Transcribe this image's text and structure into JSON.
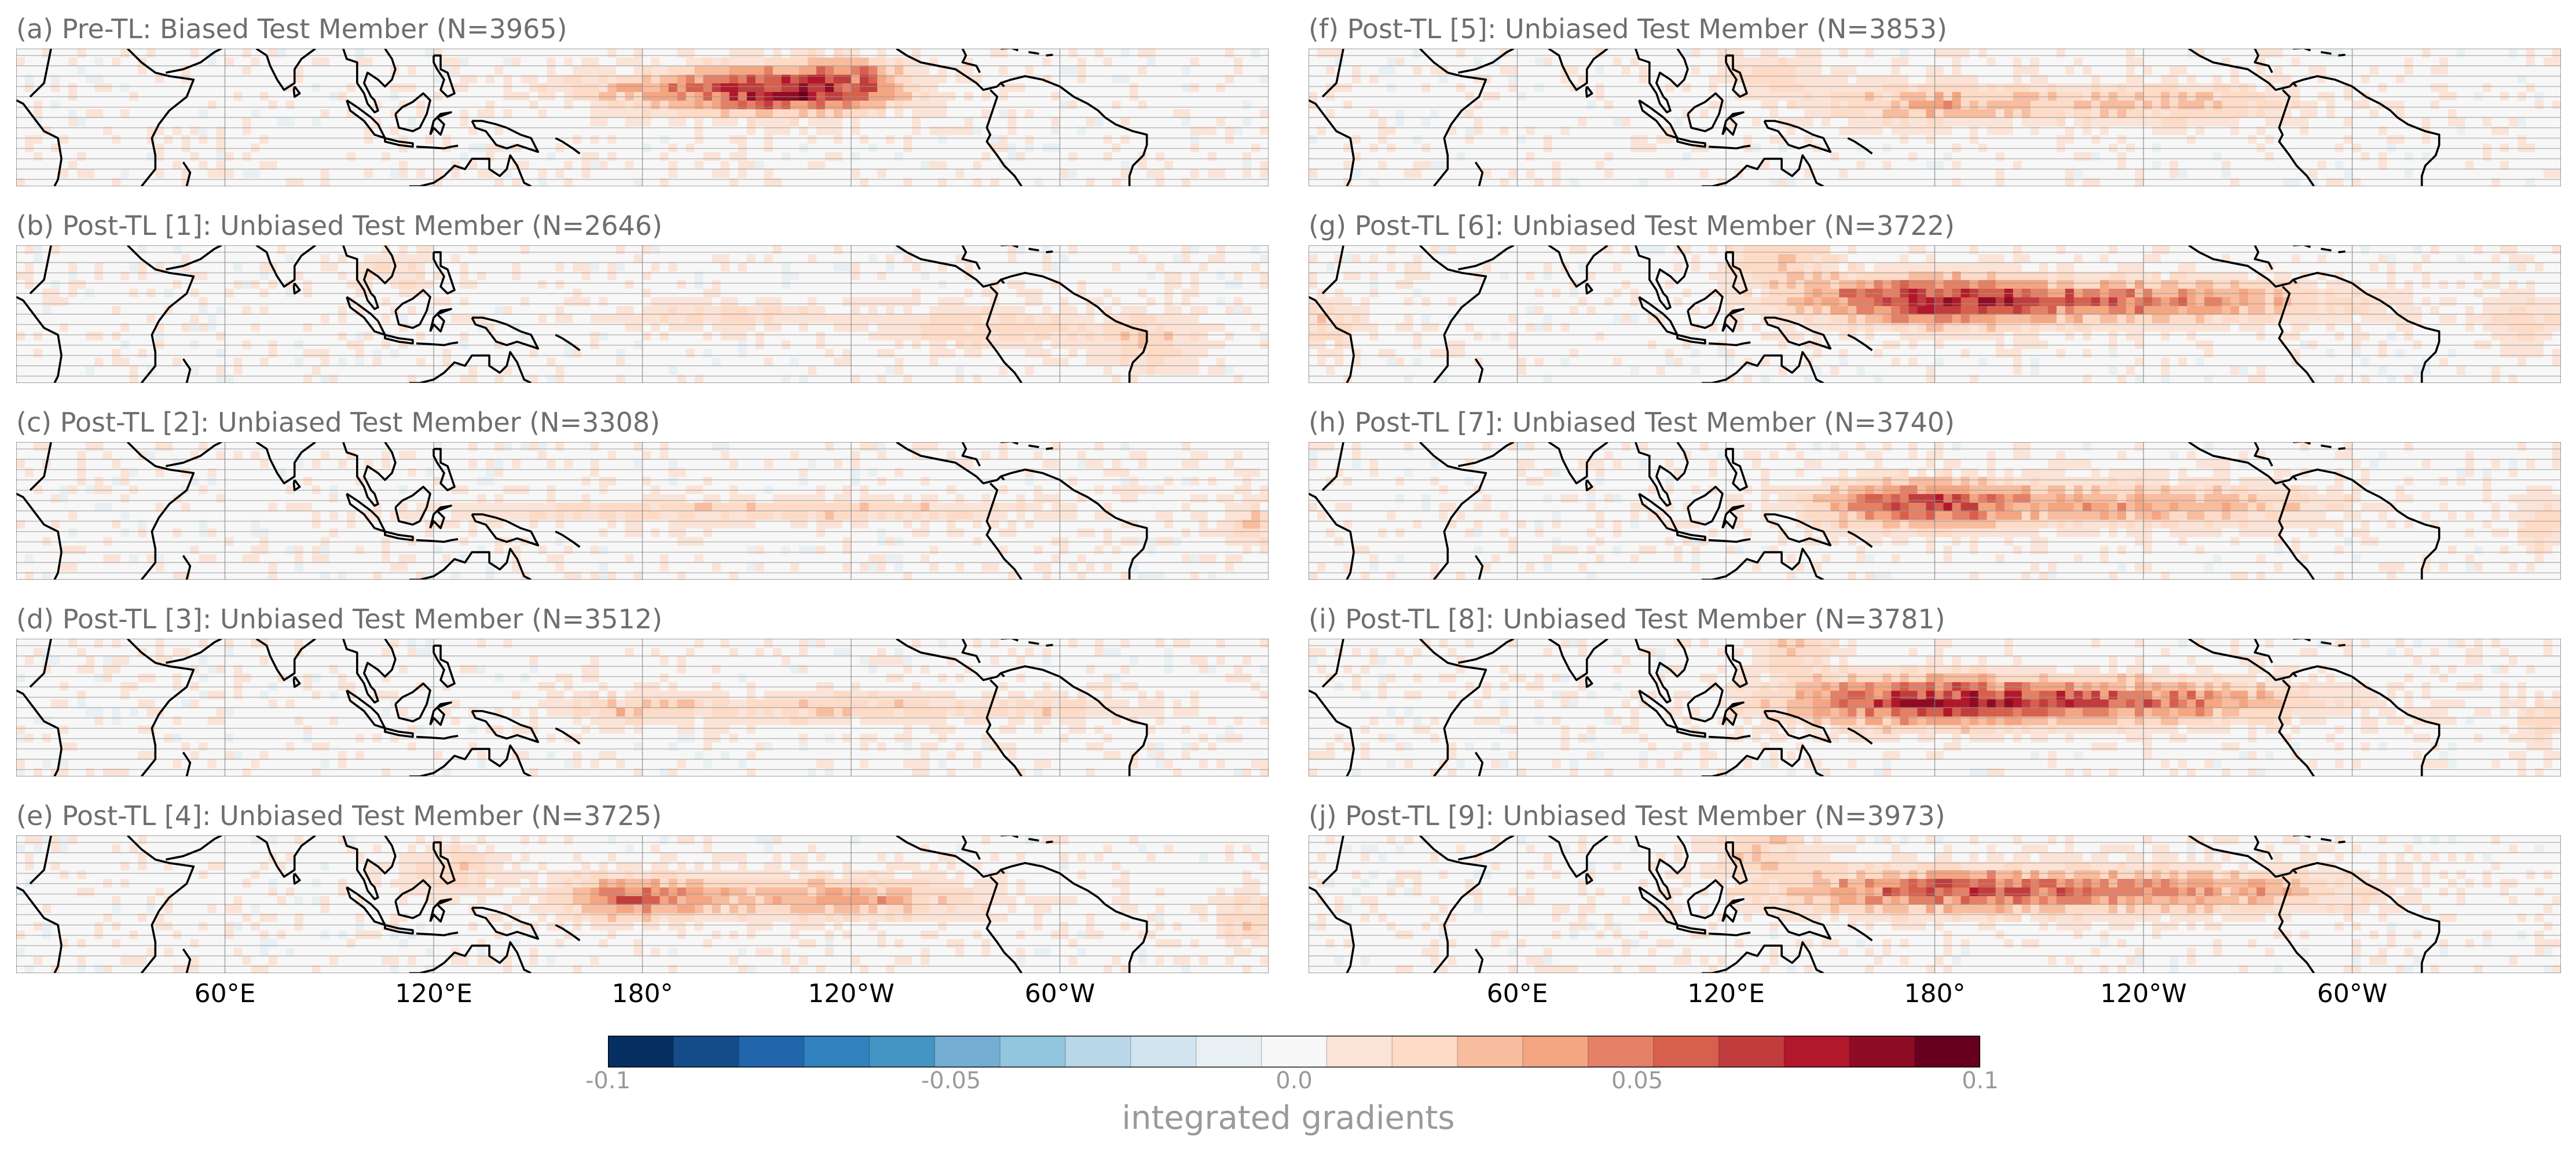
{
  "panels": [
    {
      "id": "a",
      "title": "(a) Pre-TL: Biased Test Member (N=3965)",
      "hotspots": [
        {
          "lon": 205,
          "lat": 8,
          "w": 40,
          "h": 6,
          "v": 0.045
        },
        {
          "lon": 225,
          "lat": 8,
          "w": 25,
          "h": 7,
          "v": 0.04
        },
        {
          "lon": 240,
          "lat": 12,
          "w": 15,
          "h": 6,
          "v": 0.025
        }
      ]
    },
    {
      "id": "b",
      "title": "(b) Post-TL [1]: Unbiased Test Member (N=2646)",
      "hotspots": [
        {
          "lon": 205,
          "lat": 0,
          "w": 30,
          "h": 4,
          "v": 0.018
        },
        {
          "lon": 280,
          "lat": -4,
          "w": 30,
          "h": 6,
          "v": 0.02
        },
        {
          "lon": 325,
          "lat": -8,
          "w": 15,
          "h": 8,
          "v": 0.02
        },
        {
          "lon": 110,
          "lat": 12,
          "w": 12,
          "h": 6,
          "v": 0.015
        }
      ]
    },
    {
      "id": "c",
      "title": "(c) Post-TL [2]: Unbiased Test Member (N=3308)",
      "hotspots": [
        {
          "lon": 185,
          "lat": 0,
          "w": 60,
          "h": 3,
          "v": 0.018
        },
        {
          "lon": 255,
          "lat": 0,
          "w": 50,
          "h": 3,
          "v": 0.015
        },
        {
          "lon": 355,
          "lat": -4,
          "w": 8,
          "h": 8,
          "v": 0.018
        }
      ]
    },
    {
      "id": "d",
      "title": "(d) Post-TL [3]: Unbiased Test Member (N=3512)",
      "hotspots": [
        {
          "lon": 175,
          "lat": 0,
          "w": 20,
          "h": 4,
          "v": 0.022
        },
        {
          "lon": 232,
          "lat": 0,
          "w": 40,
          "h": 4,
          "v": 0.022
        },
        {
          "lon": 300,
          "lat": 0,
          "w": 30,
          "h": 4,
          "v": 0.015
        }
      ]
    },
    {
      "id": "e",
      "title": "(e) Post-TL [4]: Unbiased Test Member (N=3725)",
      "hotspots": [
        {
          "lon": 178,
          "lat": 2,
          "w": 20,
          "h": 6,
          "v": 0.05
        },
        {
          "lon": 237,
          "lat": 2,
          "w": 40,
          "h": 6,
          "v": 0.035
        },
        {
          "lon": 125,
          "lat": 10,
          "w": 15,
          "h": 8,
          "v": 0.02
        },
        {
          "lon": 355,
          "lat": -4,
          "w": 10,
          "h": 8,
          "v": 0.02
        }
      ]
    },
    {
      "id": "f",
      "title": "(f) Post-TL [5]: Unbiased Test Member (N=3853)",
      "hotspots": [
        {
          "lon": 180,
          "lat": 4,
          "w": 30,
          "h": 6,
          "v": 0.03
        },
        {
          "lon": 245,
          "lat": 4,
          "w": 40,
          "h": 6,
          "v": 0.025
        },
        {
          "lon": 135,
          "lat": 12,
          "w": 15,
          "h": 6,
          "v": 0.018
        }
      ]
    },
    {
      "id": "g",
      "title": "(g) Post-TL [6]: Unbiased Test Member (N=3722)",
      "hotspots": [
        {
          "lon": 178,
          "lat": 4,
          "w": 35,
          "h": 7,
          "v": 0.06
        },
        {
          "lon": 240,
          "lat": 4,
          "w": 55,
          "h": 6,
          "v": 0.045
        },
        {
          "lon": 135,
          "lat": 16,
          "w": 15,
          "h": 8,
          "v": 0.022
        },
        {
          "lon": 5,
          "lat": -2,
          "w": 10,
          "h": 8,
          "v": 0.02
        },
        {
          "lon": 350,
          "lat": -2,
          "w": 10,
          "h": 8,
          "v": 0.02
        }
      ]
    },
    {
      "id": "h",
      "title": "(h) Post-TL [7]: Unbiased Test Member (N=3740)",
      "hotspots": [
        {
          "lon": 175,
          "lat": 2,
          "w": 28,
          "h": 7,
          "v": 0.055
        },
        {
          "lon": 240,
          "lat": 2,
          "w": 50,
          "h": 6,
          "v": 0.035
        },
        {
          "lon": 355,
          "lat": -4,
          "w": 8,
          "h": 8,
          "v": 0.02
        }
      ]
    },
    {
      "id": "i",
      "title": "(i) Post-TL [8]: Unbiased Test Member (N=3781)",
      "hotspots": [
        {
          "lon": 175,
          "lat": 2,
          "w": 40,
          "h": 7,
          "v": 0.06
        },
        {
          "lon": 238,
          "lat": 2,
          "w": 50,
          "h": 6,
          "v": 0.05
        },
        {
          "lon": 140,
          "lat": 18,
          "w": 12,
          "h": 8,
          "v": 0.022
        },
        {
          "lon": 355,
          "lat": -4,
          "w": 8,
          "h": 8,
          "v": 0.02
        }
      ]
    },
    {
      "id": "j",
      "title": "(j) Post-TL [9]: Unbiased Test Member (N=3973)",
      "hotspots": [
        {
          "lon": 178,
          "lat": 4,
          "w": 40,
          "h": 6,
          "v": 0.05
        },
        {
          "lon": 245,
          "lat": 4,
          "w": 55,
          "h": 6,
          "v": 0.04
        },
        {
          "lon": 130,
          "lat": 16,
          "w": 15,
          "h": 8,
          "v": 0.022
        }
      ]
    }
  ],
  "map_extent": {
    "lon_min": 0,
    "lon_max": 360,
    "lat_min": -20,
    "lat_max": 20
  },
  "x_ticks": [
    {
      "lon": 60,
      "label": "60°E"
    },
    {
      "lon": 120,
      "label": "120°E"
    },
    {
      "lon": 180,
      "label": "180°"
    },
    {
      "lon": 240,
      "label": "120°W"
    },
    {
      "lon": 300,
      "label": "60°W"
    }
  ],
  "colorbar": {
    "label": "integrated gradients",
    "vmin": -0.1,
    "vmax": 0.1,
    "colors": [
      "#053061",
      "#144d8a",
      "#2166ac",
      "#3282bd",
      "#4393c3",
      "#74aed3",
      "#92c5de",
      "#b8d7e8",
      "#d1e5f0",
      "#e9f0f4",
      "#f7f7f7",
      "#fbe4d7",
      "#fddbc7",
      "#f8bc9f",
      "#f4a582",
      "#e48066",
      "#d6604d",
      "#c13d3d",
      "#b2182b",
      "#8e0c25",
      "#67001f"
    ],
    "ticks": [
      {
        "value": -0.1,
        "label": "-0.1"
      },
      {
        "value": -0.05,
        "label": "-0.05"
      },
      {
        "value": 0.0,
        "label": "0.0"
      },
      {
        "value": 0.05,
        "label": "0.05"
      },
      {
        "value": 0.1,
        "label": "0.1"
      }
    ]
  }
}
